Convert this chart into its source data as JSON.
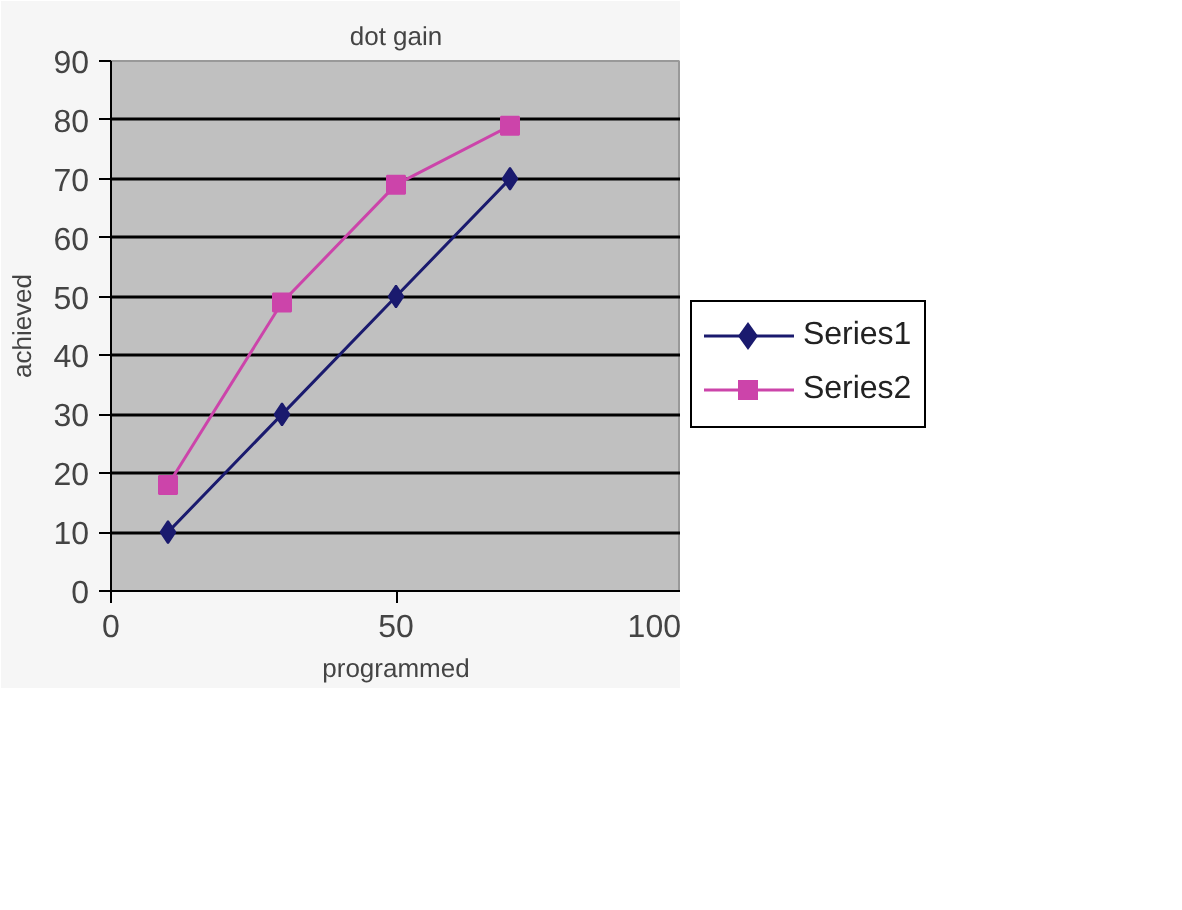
{
  "chart_data": {
    "type": "line",
    "title": "dot gain",
    "xlabel": "programmed",
    "ylabel": "achieved",
    "x": [
      10,
      30,
      50,
      70
    ],
    "series": [
      {
        "name": "Series1",
        "color": "#1a1a6e",
        "marker": "diamond",
        "values": [
          10,
          30,
          50,
          70
        ]
      },
      {
        "name": "Series2",
        "color": "#cc44aa",
        "marker": "square",
        "values": [
          18,
          49,
          69,
          79
        ]
      }
    ],
    "xlim": [
      0,
      100
    ],
    "xticks": [
      0,
      50,
      100
    ],
    "ylim": [
      0,
      90
    ],
    "yticks": [
      0,
      10,
      20,
      30,
      40,
      50,
      60,
      70,
      80,
      90
    ],
    "grid": "y",
    "legend": "right"
  }
}
